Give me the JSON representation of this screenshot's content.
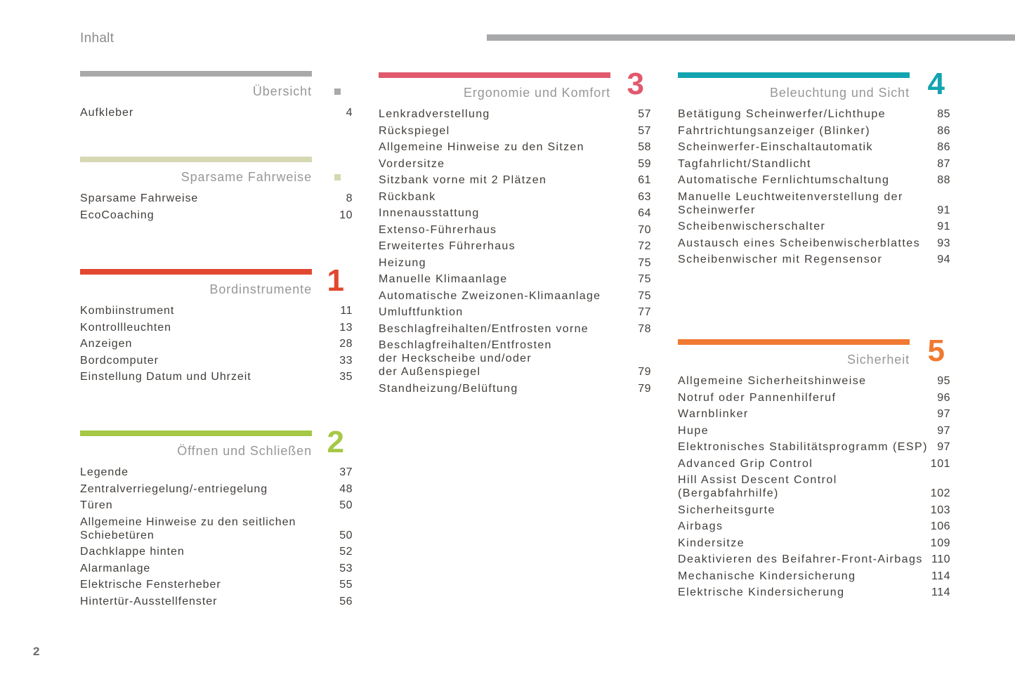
{
  "page": {
    "title": "Inhalt",
    "number": "2"
  },
  "header_rule_color": "#a6a8aa",
  "sections": [
    {
      "id": "uebersicht",
      "title": "Übersicht",
      "color": "#a9a9a9",
      "marker": "square",
      "items": [
        {
          "label": "Aufkleber",
          "page": "4"
        }
      ]
    },
    {
      "id": "sparsame-fahrweise",
      "title": "Sparsame Fahrweise",
      "color": "#d6d8b2",
      "marker": "square",
      "items": [
        {
          "label": "Sparsame Fahrweise",
          "page": "8"
        },
        {
          "label": "EcoCoaching",
          "page": "10"
        }
      ]
    },
    {
      "id": "bordinstrumente",
      "title": "Bordinstrumente",
      "color": "#e2472f",
      "marker": "number",
      "number": "1",
      "items": [
        {
          "label": "Kombiinstrument",
          "page": "11"
        },
        {
          "label": "Kontrollleuchten",
          "page": "13"
        },
        {
          "label": "Anzeigen",
          "page": "28"
        },
        {
          "label": "Bordcomputer",
          "page": "33"
        },
        {
          "label": "Einstellung Datum und Uhrzeit",
          "page": "35"
        }
      ]
    },
    {
      "id": "oeffnen-und-schliessen",
      "title": "Öffnen und Schließen",
      "color": "#a5c845",
      "marker": "number",
      "number": "2",
      "items": [
        {
          "label": "Legende",
          "page": "37"
        },
        {
          "label": "Zentralverriegelung/-entriegelung",
          "page": "48"
        },
        {
          "label": "Türen",
          "page": "50"
        },
        {
          "label": "Allgemeine Hinweise zu den seitlichen\nSchiebetüren",
          "page": "50"
        },
        {
          "label": "Dachklappe hinten",
          "page": "52"
        },
        {
          "label": "Alarmanlage",
          "page": "53"
        },
        {
          "label": "Elektrische Fensterheber",
          "page": "55"
        },
        {
          "label": "Hintertür-Ausstellfenster",
          "page": "56"
        }
      ]
    },
    {
      "id": "ergonomie-und-komfort",
      "title": "Ergonomie und Komfort",
      "color": "#e1596d",
      "marker": "number",
      "number": "3",
      "items": [
        {
          "label": "Lenkradverstellung",
          "page": "57"
        },
        {
          "label": "Rückspiegel",
          "page": "57"
        },
        {
          "label": "Allgemeine Hinweise zu den Sitzen",
          "page": "58"
        },
        {
          "label": "Vordersitze",
          "page": "59"
        },
        {
          "label": "Sitzbank vorne mit 2 Plätzen",
          "page": "61"
        },
        {
          "label": "Rückbank",
          "page": "63"
        },
        {
          "label": "Innenausstattung",
          "page": "64"
        },
        {
          "label": "Extenso-Führerhaus",
          "page": "70"
        },
        {
          "label": "Erweitertes Führerhaus",
          "page": "72"
        },
        {
          "label": "Heizung",
          "page": "75"
        },
        {
          "label": "Manuelle Klimaanlage",
          "page": "75"
        },
        {
          "label": "Automatische Zweizonen-Klimaanlage",
          "page": "75"
        },
        {
          "label": "Umluftfunktion",
          "page": "77"
        },
        {
          "label": "Beschlagfreihalten/Entfrosten vorne",
          "page": "78"
        },
        {
          "label": "Beschlagfreihalten/Entfrosten\nder Heckscheibe und/oder\nder Außenspiegel",
          "page": "79"
        },
        {
          "label": "Standheizung/Belüftung",
          "page": "79"
        }
      ]
    },
    {
      "id": "beleuchtung-und-sicht",
      "title": "Beleuchtung und Sicht",
      "color": "#12a4b0",
      "marker": "number",
      "number": "4",
      "items": [
        {
          "label": "Betätigung Scheinwerfer/Lichthupe",
          "page": "85"
        },
        {
          "label": "Fahrtrichtungsanzeiger (Blinker)",
          "page": "86"
        },
        {
          "label": "Scheinwerfer-Einschaltautomatik",
          "page": "86"
        },
        {
          "label": "Tagfahrlicht/Standlicht",
          "page": "87"
        },
        {
          "label": "Automatische Fernlichtumschaltung",
          "page": "88"
        },
        {
          "label": "Manuelle Leuchtweitenverstellung der\nScheinwerfer",
          "page": "91"
        },
        {
          "label": "Scheibenwischerschalter",
          "page": "91"
        },
        {
          "label": "Austausch eines Scheibenwischerblattes",
          "page": "93"
        },
        {
          "label": "Scheibenwischer mit Regensensor",
          "page": "94"
        }
      ]
    },
    {
      "id": "sicherheit",
      "title": "Sicherheit",
      "color": "#f07a33",
      "marker": "number",
      "number": "5",
      "items": [
        {
          "label": "Allgemeine Sicherheitshinweise",
          "page": "95"
        },
        {
          "label": "Notruf oder Pannenhilferuf",
          "page": "96"
        },
        {
          "label": "Warnblinker",
          "page": "97"
        },
        {
          "label": "Hupe",
          "page": "97"
        },
        {
          "label": "Elektronisches Stabilitätsprogramm (ESP)",
          "page": "97"
        },
        {
          "label": "Advanced Grip Control",
          "page": "101"
        },
        {
          "label": "Hill Assist Descent Control\n(Bergabfahrhilfe)",
          "page": "102"
        },
        {
          "label": "Sicherheitsgurte",
          "page": "103"
        },
        {
          "label": "Airbags",
          "page": "106"
        },
        {
          "label": "Kindersitze",
          "page": "109"
        },
        {
          "label": "Deaktivieren des Beifahrer-Front-Airbags",
          "page": "110"
        },
        {
          "label": "Mechanische Kindersicherung",
          "page": "114"
        },
        {
          "label": "Elektrische Kindersicherung",
          "page": "114"
        }
      ]
    }
  ]
}
